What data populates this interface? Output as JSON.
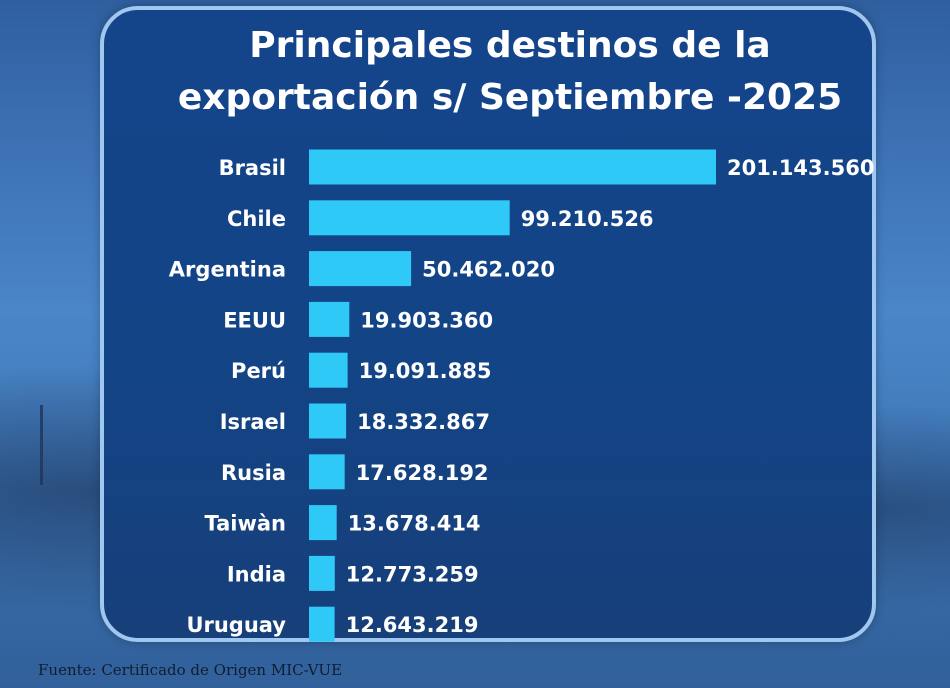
{
  "header": {
    "title_line1": "Principales destinos de la",
    "title_line2": "exportación s/ Septiembre -2025"
  },
  "footer": {
    "source": "Fuente: Certificado de Origen MIC-VUE"
  },
  "colors": {
    "bar": "#2ec9f6",
    "panel": "#14448a",
    "text": "#ffffff",
    "panel_border": "#9fc7ef"
  },
  "chart_data": {
    "type": "bar",
    "orientation": "horizontal",
    "title": "Principales destinos de la exportación s/ Septiembre -2025",
    "categories": [
      "Brasil",
      "Chile",
      "Argentina",
      "EEUU",
      "Perú",
      "Israel",
      "Rusia",
      "Taiwàn",
      "India",
      "Uruguay"
    ],
    "values": [
      201143560,
      99210526,
      50462020,
      19903360,
      19091885,
      18332867,
      17628192,
      13678414,
      12773259,
      12643219
    ],
    "labels": [
      "201.143.560",
      "99.210.526",
      "50.462.020",
      "19.903.360",
      "19.091.885",
      "18.332.867",
      "17.628.192",
      "13.678.414",
      "12.773.259",
      "12.643.219"
    ],
    "xlabel": "",
    "ylabel": "",
    "grid": false,
    "legend": "none"
  }
}
